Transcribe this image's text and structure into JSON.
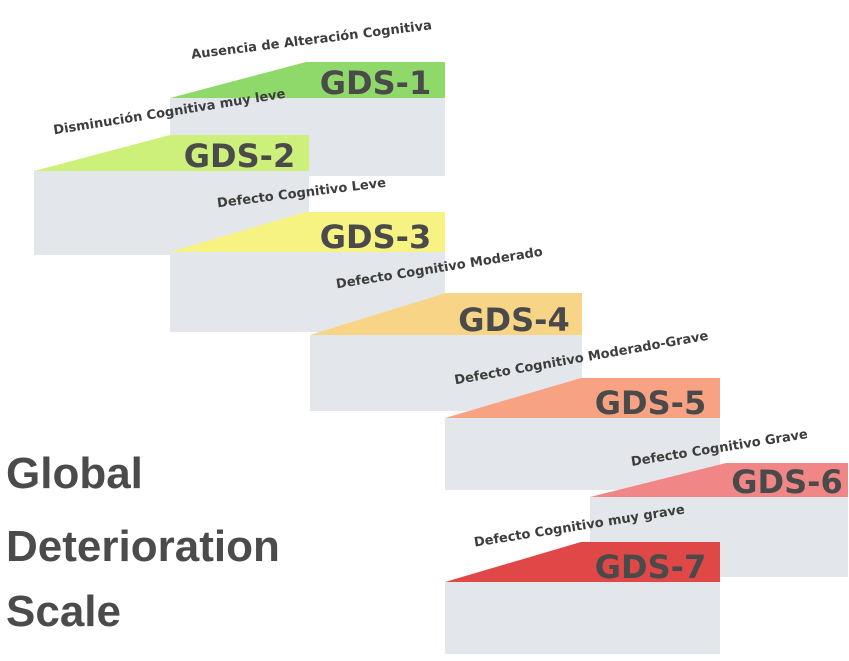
{
  "title": {
    "lines": [
      "Global",
      "Deterioration",
      "Scale"
    ]
  },
  "colors": {
    "front_face": "#e3e6ea",
    "side_face": "#c9d2db",
    "label_text": "#4a4a4a",
    "caption_text": "#3d3d3d"
  },
  "steps": [
    {
      "label": "GDS-1",
      "caption": "Ausencia de Alteración Cognitiva",
      "color": "#8fd96b"
    },
    {
      "label": "GDS-2",
      "caption": "Disminución Cognitiva muy leve",
      "color": "#cdf07a"
    },
    {
      "label": "GDS-3",
      "caption": "Defecto Cognitivo Leve",
      "color": "#f7f383"
    },
    {
      "label": "GDS-4",
      "caption": "Defecto Cognitivo Moderado",
      "color": "#f7d486"
    },
    {
      "label": "GDS-5",
      "caption": "Defecto Cognitivo Moderado-Grave",
      "color": "#f7a383"
    },
    {
      "label": "GDS-6",
      "caption": "Defecto Cognitivo Grave",
      "color": "#f08686"
    },
    {
      "label": "GDS-7",
      "caption": "Defecto Cognitivo muy grave",
      "color": "#e04848"
    }
  ]
}
